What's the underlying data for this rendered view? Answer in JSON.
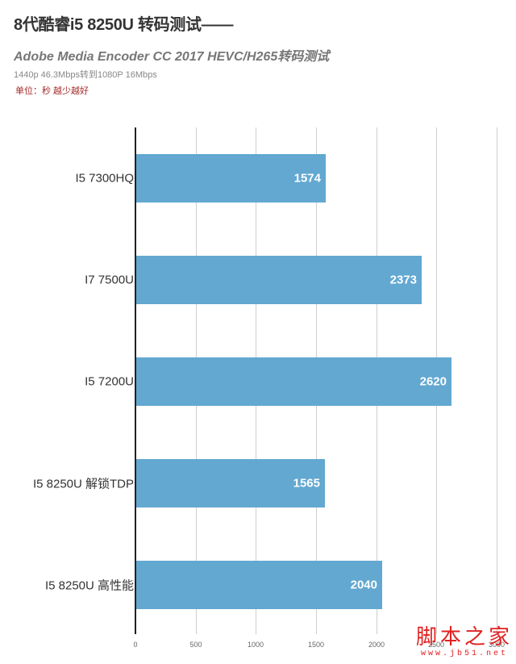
{
  "header": {
    "title": "8代酷睿i5 8250U 转码测试——",
    "subtitle": "Adobe Media Encoder CC 2017 HEVC/H265转码测试",
    "note": "1440p 46.3Mbps转到1080P 16Mbps",
    "unit": "单位：秒 越少越好"
  },
  "colors": {
    "bar": "#62a8d1",
    "unit_text": "#a52a2a",
    "watermark": "#e02020"
  },
  "chart_data": {
    "type": "bar",
    "orientation": "horizontal",
    "title": "8代酷睿i5 8250U 转码测试——",
    "subtitle": "Adobe Media Encoder CC 2017 HEVC/H265转码测试",
    "categories": [
      "I5 7300HQ",
      "I7 7500U",
      "I5 7200U",
      "I5 8250U 解锁TDP",
      "I5 8250U 高性能"
    ],
    "values": [
      1574,
      2373,
      2620,
      1565,
      2040
    ],
    "value_labels": [
      "1574",
      "2373",
      "2620",
      "1565",
      "2040"
    ],
    "xlabel": "",
    "ylabel": "",
    "unit": "秒",
    "xlim": [
      0,
      3000
    ],
    "xticks": [
      "0",
      "500",
      "1000",
      "1500",
      "2000",
      "2500",
      "3000"
    ],
    "grid": true,
    "legend": null
  },
  "watermark": {
    "text": "脚本之家",
    "url": "www.jb51.net"
  }
}
